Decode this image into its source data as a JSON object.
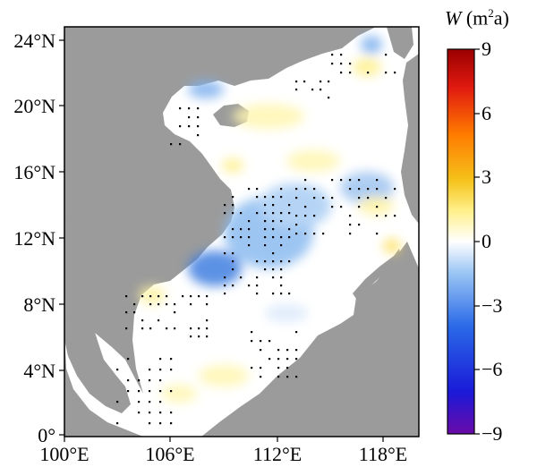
{
  "map": {
    "lat_ticks": [
      "24°N",
      "20°N",
      "16°N",
      "12°N",
      "8°N",
      "4°N",
      "0°"
    ],
    "lon_ticks": [
      "100°E",
      "106°E",
      "112°E",
      "118°E"
    ],
    "lat_range": [
      0,
      25
    ],
    "lon_range": [
      100,
      120
    ],
    "land_color": "#9b9b9b",
    "sea_color": "#ffffff"
  },
  "colorbar": {
    "title_var": "W",
    "title_unit_open": "(m",
    "title_unit_sup": "2",
    "title_unit_close": "a)",
    "ticks": [
      "9",
      "6",
      "3",
      "0",
      "−3",
      "−6",
      "−9"
    ],
    "range": [
      -9,
      9
    ],
    "colors": [
      "#6a0aa8",
      "#1a1ad8",
      "#2a6ae8",
      "#7fb3f2",
      "#ffffff",
      "#fff08a",
      "#f5c21a",
      "#ff7a00",
      "#e01a10",
      "#a00000"
    ]
  }
}
